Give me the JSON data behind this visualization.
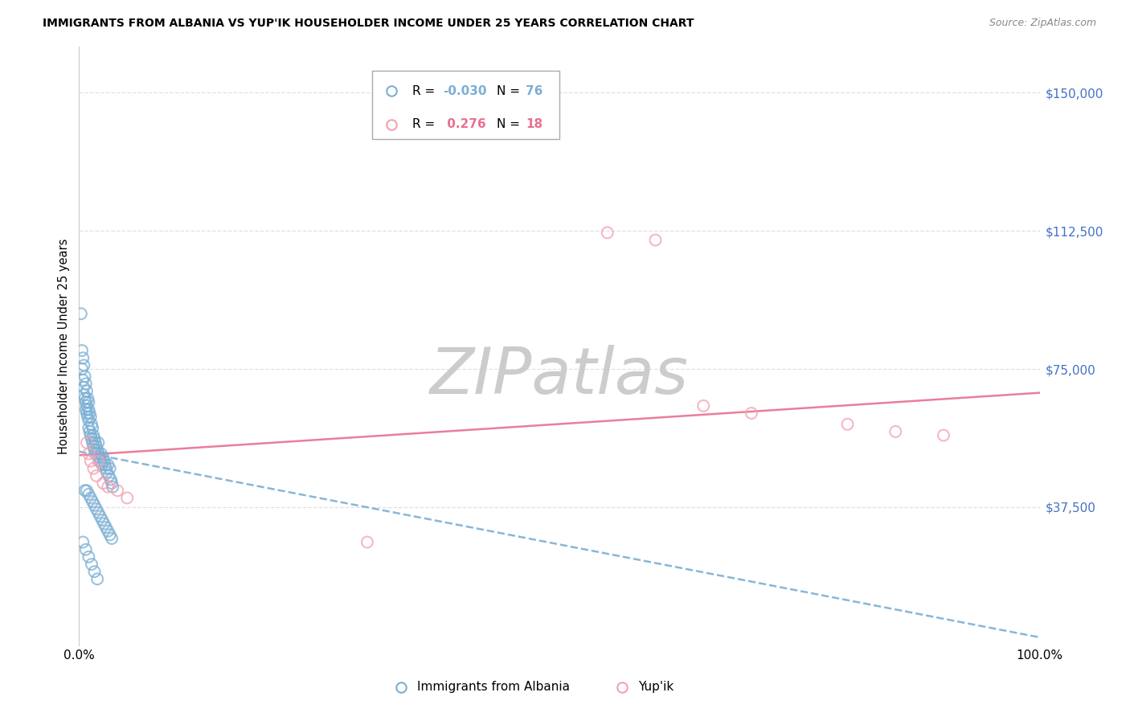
{
  "title": "IMMIGRANTS FROM ALBANIA VS YUP'IK HOUSEHOLDER INCOME UNDER 25 YEARS CORRELATION CHART",
  "source": "Source: ZipAtlas.com",
  "ylabel": "Householder Income Under 25 years",
  "xlim": [
    0.0,
    100.0
  ],
  "ylim": [
    0,
    162500
  ],
  "yticks": [
    0,
    37500,
    75000,
    112500,
    150000
  ],
  "ytick_labels": [
    "",
    "$37,500",
    "$75,000",
    "$112,500",
    "$150,000"
  ],
  "ytick_color": "#4472C4",
  "albania_R": -0.03,
  "albania_N": 76,
  "yupik_R": 0.276,
  "yupik_N": 18,
  "albania_color": "#7BAFD4",
  "yupik_color": "#F4A0B0",
  "albania_line_color": "#7BAFD4",
  "yupik_line_color": "#E87090",
  "watermark_color": "#DDDDDD",
  "grid_color": "#DDDDDD",
  "bg_color": "#FFFFFF",
  "albania_x": [
    0.2,
    0.3,
    0.3,
    0.4,
    0.4,
    0.5,
    0.5,
    0.5,
    0.6,
    0.6,
    0.7,
    0.7,
    0.7,
    0.8,
    0.8,
    0.8,
    0.9,
    0.9,
    1.0,
    1.0,
    1.0,
    1.0,
    1.1,
    1.1,
    1.2,
    1.2,
    1.3,
    1.3,
    1.4,
    1.4,
    1.5,
    1.5,
    1.6,
    1.6,
    1.7,
    1.7,
    1.8,
    1.9,
    2.0,
    2.0,
    2.1,
    2.2,
    2.3,
    2.4,
    2.5,
    2.6,
    2.7,
    2.8,
    2.9,
    3.0,
    3.1,
    3.2,
    3.3,
    3.4,
    3.5,
    0.6,
    0.8,
    1.0,
    1.2,
    1.4,
    1.6,
    1.8,
    2.0,
    2.2,
    2.4,
    2.6,
    2.8,
    3.0,
    3.2,
    3.4,
    0.4,
    0.7,
    1.0,
    1.3,
    1.6,
    1.9
  ],
  "albania_y": [
    90000,
    80000,
    75000,
    78000,
    72000,
    76000,
    70000,
    68000,
    73000,
    67000,
    71000,
    66000,
    64000,
    69000,
    65000,
    63000,
    67000,
    62000,
    66000,
    64000,
    61000,
    59000,
    63000,
    58000,
    62000,
    57000,
    60000,
    56000,
    59000,
    55000,
    57000,
    54000,
    56000,
    53000,
    55000,
    52000,
    54000,
    53000,
    55000,
    52000,
    51000,
    50000,
    52000,
    49000,
    51000,
    50000,
    49000,
    48000,
    47000,
    49000,
    46000,
    48000,
    45000,
    44000,
    43000,
    42000,
    42000,
    41000,
    40000,
    39000,
    38000,
    37000,
    36000,
    35000,
    34000,
    33000,
    32000,
    31000,
    30000,
    29000,
    28000,
    26000,
    24000,
    22000,
    20000,
    18000
  ],
  "yupik_x": [
    0.8,
    1.0,
    1.2,
    1.5,
    1.8,
    2.0,
    2.5,
    3.0,
    4.0,
    5.0,
    55.0,
    60.0,
    65.0,
    70.0,
    80.0,
    85.0,
    30.0,
    90.0
  ],
  "yupik_y": [
    55000,
    52000,
    50000,
    48000,
    46000,
    50000,
    44000,
    43000,
    42000,
    40000,
    112000,
    110000,
    65000,
    63000,
    60000,
    58000,
    28000,
    57000
  ],
  "legend_R1": "R = ",
  "legend_V1": "-0.030",
  "legend_N1": "N = ",
  "legend_NV1": "76",
  "legend_R2": "R =  ",
  "legend_V2": "0.276",
  "legend_N2": "N = ",
  "legend_NV2": "18",
  "label_albania": "Immigrants from Albania",
  "label_yupik": "Yup'ik"
}
